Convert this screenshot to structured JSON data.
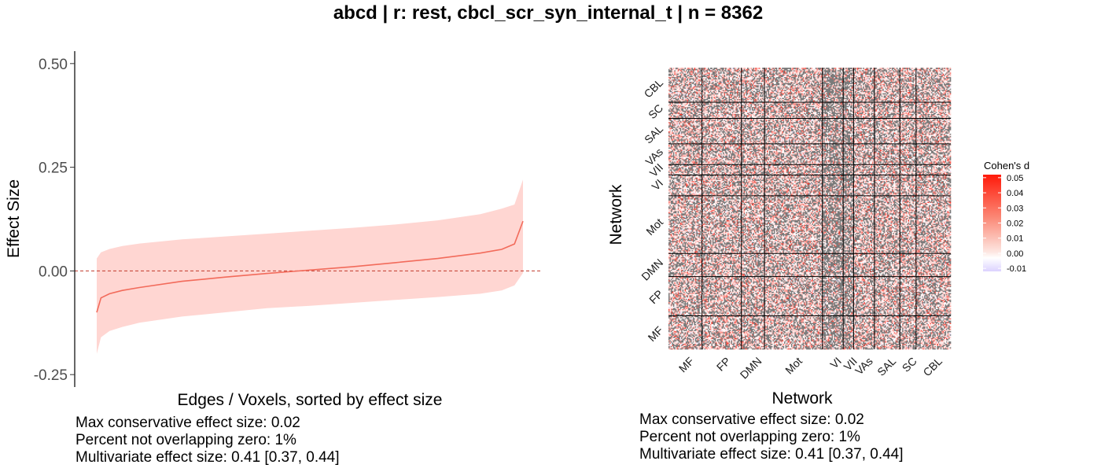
{
  "title": "abcd | r: rest, cbcl_scr_syn_internal_t | n = 8362",
  "colors": {
    "band": "#ffd6d2",
    "line": "#f26b5b",
    "zero_line": "#c0392b",
    "na_cell": "#7a7a7a"
  },
  "chart_data": [
    {
      "type": "area",
      "xlabel": "Edges / Voxels, sorted by effect size",
      "ylabel": "Effect Size",
      "ylim": [
        -0.28,
        0.53
      ],
      "yticks": [
        "-0.25",
        "0.00",
        "0.25",
        "0.50"
      ],
      "ytick_values": [
        -0.25,
        0,
        0.25,
        0.5
      ],
      "reference_line": 0,
      "series": [
        {
          "x": [
            0,
            0.01,
            0.03,
            0.06,
            0.1,
            0.2,
            0.3,
            0.4,
            0.5,
            0.6,
            0.7,
            0.8,
            0.9,
            0.95,
            0.98,
            1
          ],
          "estimate": [
            -0.1,
            -0.065,
            -0.055,
            -0.047,
            -0.04,
            -0.025,
            -0.015,
            -0.006,
            0.002,
            0.01,
            0.02,
            0.03,
            0.043,
            0.052,
            0.065,
            0.12
          ],
          "upper": [
            0.03,
            0.045,
            0.053,
            0.06,
            0.066,
            0.076,
            0.083,
            0.09,
            0.097,
            0.104,
            0.112,
            0.122,
            0.137,
            0.15,
            0.16,
            0.22
          ],
          "lower": [
            -0.2,
            -0.16,
            -0.145,
            -0.135,
            -0.125,
            -0.11,
            -0.1,
            -0.09,
            -0.084,
            -0.077,
            -0.07,
            -0.063,
            -0.055,
            -0.047,
            -0.035,
            -0.005
          ]
        }
      ]
    },
    {
      "type": "heatmap",
      "xlabel": "Network",
      "ylabel": "Network",
      "networks_x": [
        "MF",
        "FP",
        "DMN",
        "Mot",
        "VI",
        "VII",
        "VAs",
        "SAL",
        "SC",
        "CBL"
      ],
      "networks_y_top_to_bottom": [
        "CBL",
        "SC",
        "SAL",
        "VAs",
        "VII",
        "VI",
        "Mot",
        "DMN",
        "FP",
        "MF"
      ],
      "network_sizes": [
        29,
        34,
        20,
        50,
        18,
        9,
        18,
        22,
        14,
        30
      ],
      "legend": {
        "title": "Cohen's d",
        "ticks": [
          "0.05",
          "0.04",
          "0.03",
          "0.02",
          "0.01",
          "0.00",
          "-0.01"
        ],
        "tick_values": [
          0.05,
          0.04,
          0.03,
          0.02,
          0.01,
          0,
          -0.01
        ],
        "range": [
          -0.012,
          0.052
        ]
      }
    }
  ],
  "stats_left": [
    "Max conservative effect size: 0.02",
    "Percent not overlapping zero: 1%",
    "Multivariate effect size: 0.41 [0.37, 0.44]"
  ],
  "stats_right": [
    "Max conservative effect size: 0.02",
    "Percent not overlapping zero: 1%",
    "Multivariate effect size: 0.41 [0.37, 0.44]"
  ]
}
